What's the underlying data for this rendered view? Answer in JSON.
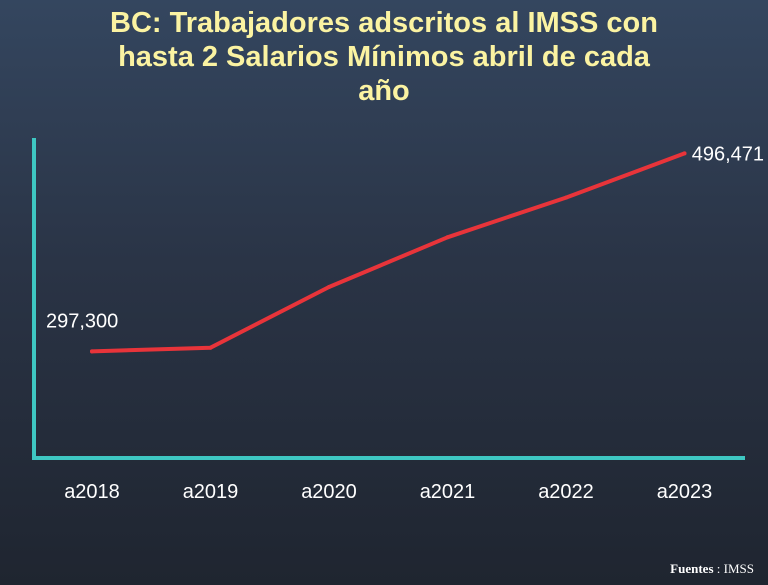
{
  "chart_data": {
    "type": "line",
    "title_lines": [
      "BC: Trabajadores adscritos al IMSS con",
      "hasta 2 Salarios Mínimos abril de cada",
      "año"
    ],
    "categories": [
      "a2018",
      "a2019",
      "a2020",
      "a2021",
      "a2022",
      "a2023"
    ],
    "values": [
      297300,
      301000,
      362000,
      412000,
      452000,
      496471
    ],
    "data_labels": [
      {
        "index": 0,
        "text": "297,300"
      },
      {
        "index": 5,
        "text": "496,471"
      }
    ],
    "ylim": [
      190000,
      520000
    ],
    "grid": false,
    "colors": {
      "line": "#e8343a",
      "axis": "#3ec7c2",
      "title": "#fbf3a2",
      "text": "#ffffff"
    }
  },
  "footer": {
    "label": "Fuentes",
    "separator": ":",
    "source": "IMSS"
  }
}
